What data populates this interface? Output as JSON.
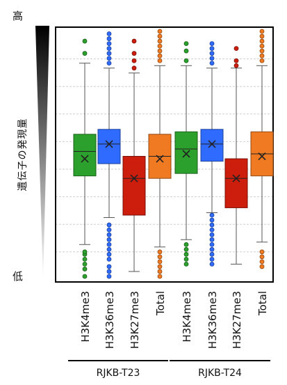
{
  "labels": {
    "high": "高",
    "low": "低",
    "ylabel": "遺伝子の発現量"
  },
  "colors": {
    "H3K4me3": "#2ca02c",
    "H3K36me3": "#2f6bff",
    "H3K27me3": "#cc1d0d",
    "Total": "#f07a21"
  },
  "chart_data": {
    "type": "box",
    "ylim": [
      0,
      100
    ],
    "grid": true,
    "x_labels": [
      "H3K4me3",
      "H3K36me3",
      "H3K27me3",
      "Total",
      "H3K4me3",
      "H3K36me3",
      "H3K27me3",
      "Total"
    ],
    "groups": [
      {
        "label": "RJKB-T23",
        "start": 0,
        "end": 3
      },
      {
        "label": "RJKB-T24",
        "start": 4,
        "end": 7
      }
    ],
    "boxes": [
      {
        "name": "H3K4me3",
        "group": "RJKB-T23",
        "min": 13,
        "q1": 41,
        "median": 51,
        "q3": 58,
        "max": 87,
        "mean": 48,
        "outliers": [
          0,
          3,
          5,
          7,
          9,
          10,
          91,
          96
        ]
      },
      {
        "name": "H3K36me3",
        "group": "RJKB-T23",
        "min": 24,
        "q1": 46,
        "median": 54,
        "q3": 60,
        "max": 85,
        "mean": 54,
        "outliers": [
          0,
          2,
          4,
          7,
          9,
          11,
          13,
          15,
          17,
          19,
          21,
          87,
          89,
          91,
          93,
          95,
          97,
          99
        ]
      },
      {
        "name": "H3K27me3",
        "group": "RJKB-T23",
        "min": 2,
        "q1": 25,
        "median": 40,
        "q3": 49,
        "max": 83,
        "mean": 40,
        "outliers": [
          85,
          88,
          91,
          96
        ]
      },
      {
        "name": "Total",
        "group": "RJKB-T23",
        "min": 12,
        "q1": 40,
        "median": 49,
        "q3": 58,
        "max": 86,
        "mean": 48,
        "outliers": [
          0,
          2,
          4,
          6,
          8,
          10,
          88,
          90,
          92,
          94,
          96,
          98,
          100
        ]
      },
      {
        "name": "H3K4me3",
        "group": "RJKB-T24",
        "min": 15,
        "q1": 42,
        "median": 52,
        "q3": 59,
        "max": 86,
        "mean": 50,
        "outliers": [
          5,
          7,
          9,
          11,
          13,
          88,
          92,
          95
        ]
      },
      {
        "name": "H3K36me3",
        "group": "RJKB-T24",
        "min": 26,
        "q1": 47,
        "median": 54,
        "q3": 60,
        "max": 85,
        "mean": 54,
        "outliers": [
          5,
          7,
          9,
          11,
          13,
          15,
          17,
          19,
          21,
          23,
          25,
          87,
          89,
          91,
          93,
          95
        ]
      },
      {
        "name": "H3K27me3",
        "group": "RJKB-T24",
        "min": 5,
        "q1": 28,
        "median": 40,
        "q3": 48,
        "max": 85,
        "mean": 40,
        "outliers": [
          86,
          88,
          93
        ]
      },
      {
        "name": "Total",
        "group": "RJKB-T24",
        "min": 14,
        "q1": 41,
        "median": 50,
        "q3": 59,
        "max": 86,
        "mean": 49,
        "outliers": [
          4,
          6,
          8,
          10,
          88,
          90,
          92,
          94,
          96,
          98,
          100
        ]
      }
    ]
  }
}
